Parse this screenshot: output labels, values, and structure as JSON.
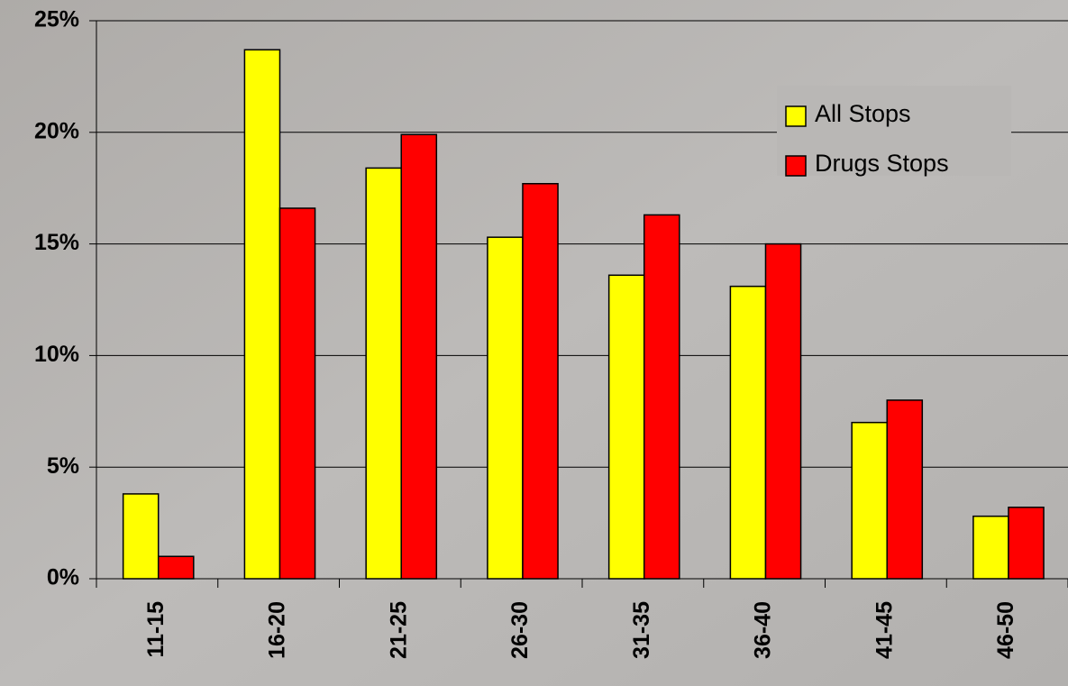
{
  "chart_data": {
    "type": "bar",
    "categories": [
      "11-15",
      "16-20",
      "21-25",
      "26-30",
      "31-35",
      "36-40",
      "41-45",
      "46-50"
    ],
    "series": [
      {
        "name": "All Stops",
        "color": "#ffff00",
        "values": [
          3.8,
          23.7,
          18.4,
          15.3,
          13.6,
          13.1,
          7.0,
          2.8
        ]
      },
      {
        "name": "Drugs Stops",
        "color": "#ff0000",
        "values": [
          1.0,
          16.6,
          19.9,
          17.7,
          16.3,
          15.0,
          8.0,
          3.2
        ]
      }
    ],
    "ylim": [
      0,
      25
    ],
    "yticks": [
      {
        "value": 0,
        "label": "0%"
      },
      {
        "value": 5,
        "label": "5%"
      },
      {
        "value": 10,
        "label": "10%"
      },
      {
        "value": 15,
        "label": "15%"
      },
      {
        "value": 20,
        "label": "20%"
      },
      {
        "value": 25,
        "label": "25%"
      }
    ],
    "grid": true,
    "legend": "upper right"
  }
}
